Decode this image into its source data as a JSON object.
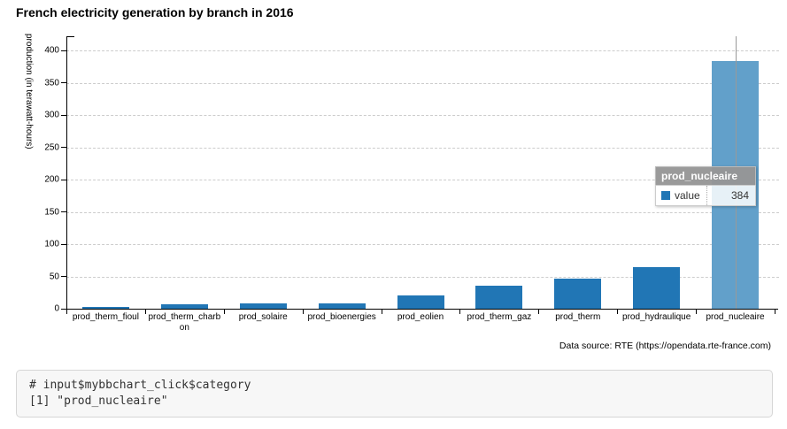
{
  "chart_data": {
    "type": "bar",
    "title": "French electricity generation by branch in 2016",
    "categories": [
      "prod_therm_fioul",
      "prod_therm_charbon",
      "prod_solaire",
      "prod_bioenergies",
      "prod_eolien",
      "prod_therm_gaz",
      "prod_therm",
      "prod_hydraulique",
      "prod_nucleaire"
    ],
    "values": [
      3,
      7,
      8,
      8,
      21,
      35,
      46,
      64,
      384
    ],
    "xlabel": "",
    "ylabel": "production (in terawatt-hours)",
    "ylim": [
      0,
      420
    ],
    "yticks": [
      0,
      50,
      100,
      150,
      200,
      250,
      300,
      350,
      400
    ],
    "grid": "horizontal-dashed",
    "legend": "none",
    "highlighted_category": "prod_nucleaire",
    "colors": {
      "bar": "#2176b5",
      "bar_highlight": "#62a0ca",
      "grid": "#cccccc",
      "crosshair": "#999999",
      "axis": "#000000"
    }
  },
  "tooltip": {
    "header": "prod_nucleaire",
    "rows": [
      {
        "label": "value",
        "value": "384"
      }
    ]
  },
  "data_source": "Data source: RTE (https://opendata.rte-france.com)",
  "console": {
    "lines": [
      "# input$mybbchart_click$category",
      "[1] \"prod_nucleaire\""
    ]
  }
}
